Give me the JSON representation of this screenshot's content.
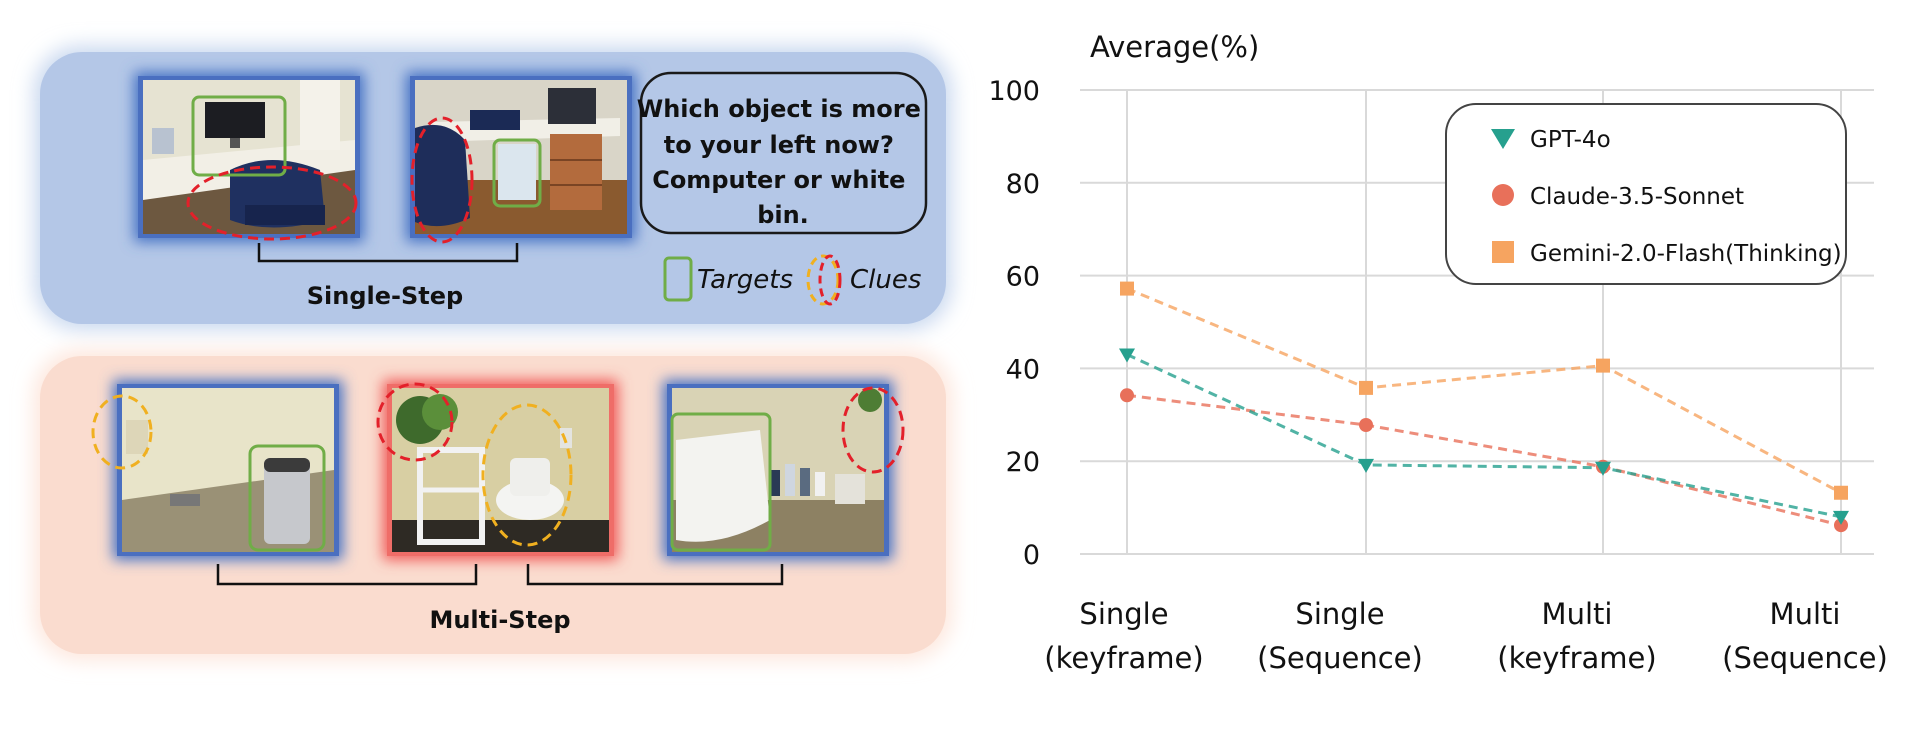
{
  "left_panel": {
    "single_step": {
      "label": "Single-Step",
      "question": [
        "Which object is more",
        "to your left now?",
        "Computer or white",
        "bin."
      ],
      "legend": {
        "targets": "Targets",
        "clues": "Clues"
      }
    },
    "multi_step": {
      "label": "Multi-Step"
    }
  },
  "colors": {
    "gpt": "#26a08e",
    "claude": "#e8705a",
    "gemini": "#f6a460",
    "single_bg": "#b4c7e7",
    "multi_bg": "#fadccf",
    "frame_blue": "#4472c4",
    "target_green": "#70ad47",
    "clue_red": "#e3202a",
    "clue_yellow": "#f0b020"
  },
  "chart_data": {
    "type": "line",
    "title": "Average(%)",
    "categories": [
      "Single\n(keyframe)",
      "Single\n(Sequence)",
      "Multi\n(keyframe)",
      "Multi\n(Sequence)"
    ],
    "ylim": [
      0,
      100
    ],
    "yticks": [
      0,
      20,
      40,
      60,
      80,
      100
    ],
    "grid": true,
    "legend_position": "top-right",
    "series": [
      {
        "name": "GPT-4o",
        "marker": "triangle-down",
        "color": "#26a08e",
        "values": [
          43,
          19.2,
          18.6,
          8
        ]
      },
      {
        "name": "Claude-3.5-Sonnet",
        "marker": "circle",
        "color": "#e8705a",
        "values": [
          34.2,
          27.8,
          18.8,
          6.2
        ]
      },
      {
        "name": "Gemini-2.0-Flash(Thinking)",
        "marker": "square",
        "color": "#f6a460",
        "values": [
          57.2,
          35.8,
          40.6,
          13.2
        ]
      }
    ]
  }
}
